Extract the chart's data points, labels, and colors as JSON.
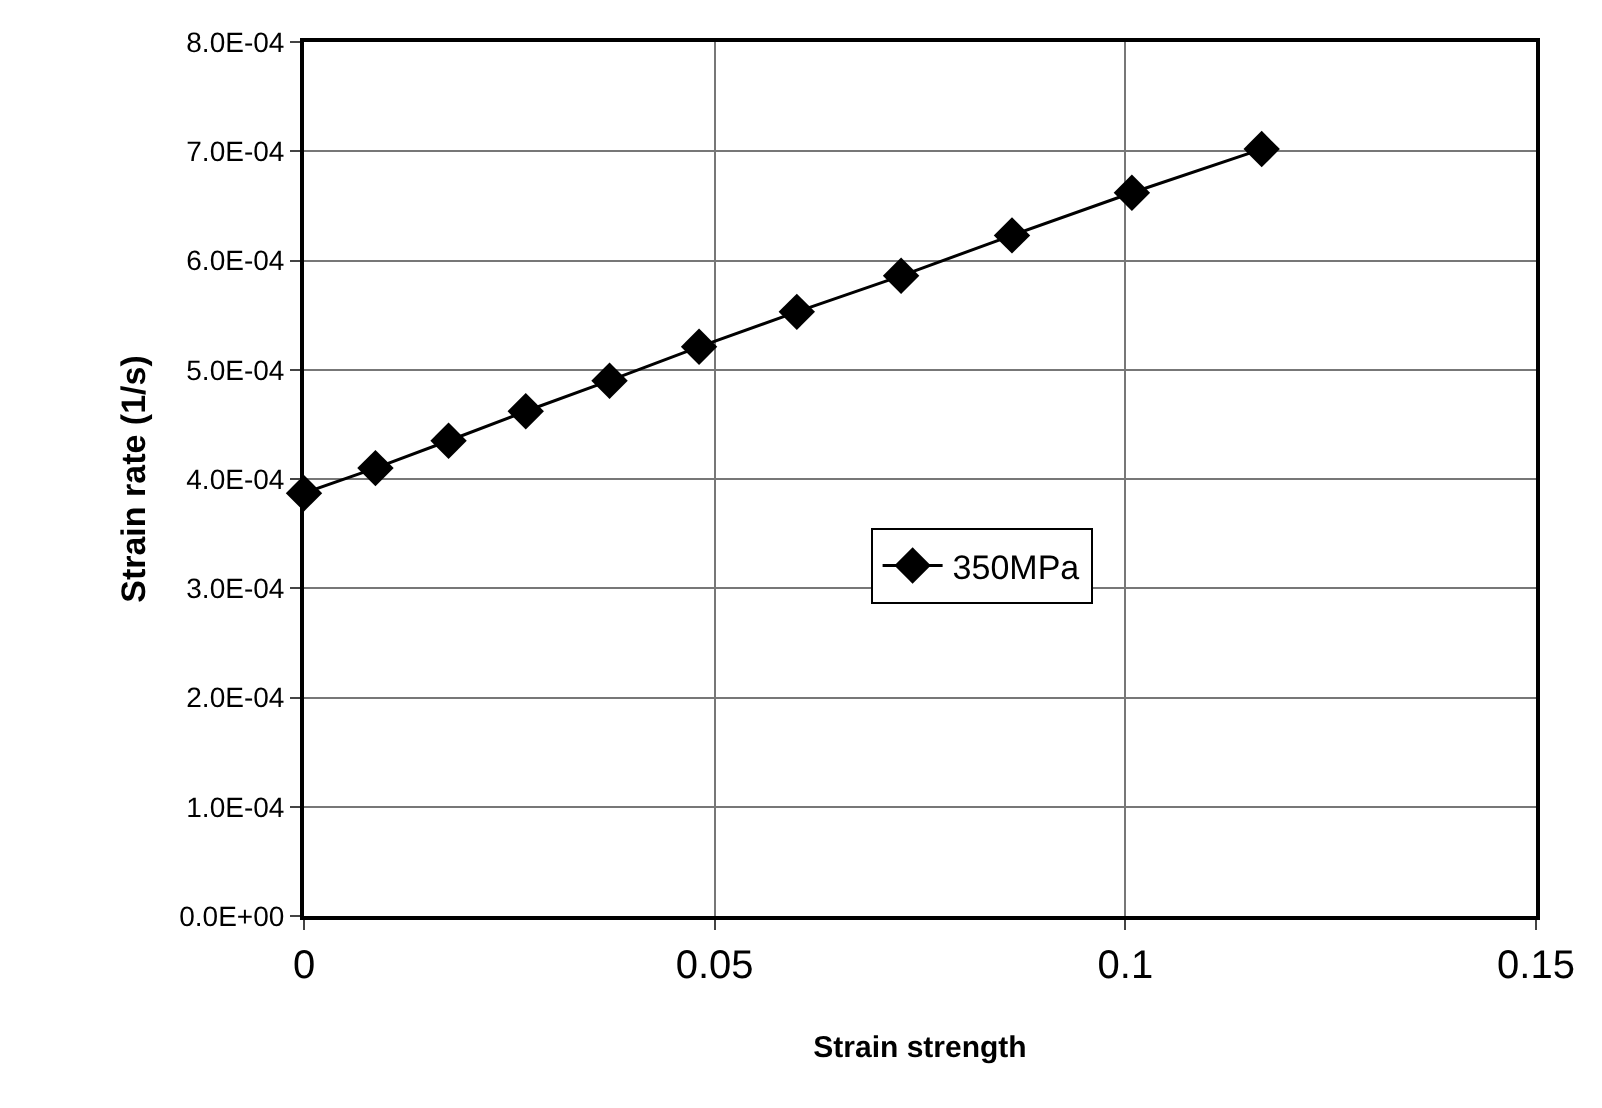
{
  "chart_data": {
    "type": "line",
    "xlabel": "Strain strength",
    "ylabel": "Strain rate (1/s)",
    "xlim": [
      0,
      0.15
    ],
    "xticks": [
      0,
      0.05,
      0.1,
      0.15
    ],
    "ylim": [
      0,
      0.0008
    ],
    "yticks": [
      {
        "value": 0,
        "label": "0.0E+00"
      },
      {
        "value": 0.0001,
        "label": "1.0E-04"
      },
      {
        "value": 0.0002,
        "label": "2.0E-04"
      },
      {
        "value": 0.0003,
        "label": "3.0E-04"
      },
      {
        "value": 0.0004,
        "label": "4.0E-04"
      },
      {
        "value": 0.0005,
        "label": "5.0E-04"
      },
      {
        "value": 0.0006,
        "label": "6.0E-04"
      },
      {
        "value": 0.0007,
        "label": "7.0E-04"
      },
      {
        "value": 0.0008,
        "label": "8.0E-04"
      }
    ],
    "x": [
      0,
      0.0087,
      0.0176,
      0.027,
      0.0372,
      0.0481,
      0.06,
      0.0727,
      0.0862,
      0.1008,
      0.1166
    ],
    "series": [
      {
        "name": "350MPa",
        "color": "#000000",
        "values": [
          0.000387,
          0.00041,
          0.000435,
          0.000462,
          0.00049,
          0.000521,
          0.000553,
          0.000586,
          0.000623,
          0.000662,
          0.000702
        ]
      }
    ],
    "grid": true,
    "legend": "center",
    "marker": "diamond",
    "line_style": "solid"
  }
}
